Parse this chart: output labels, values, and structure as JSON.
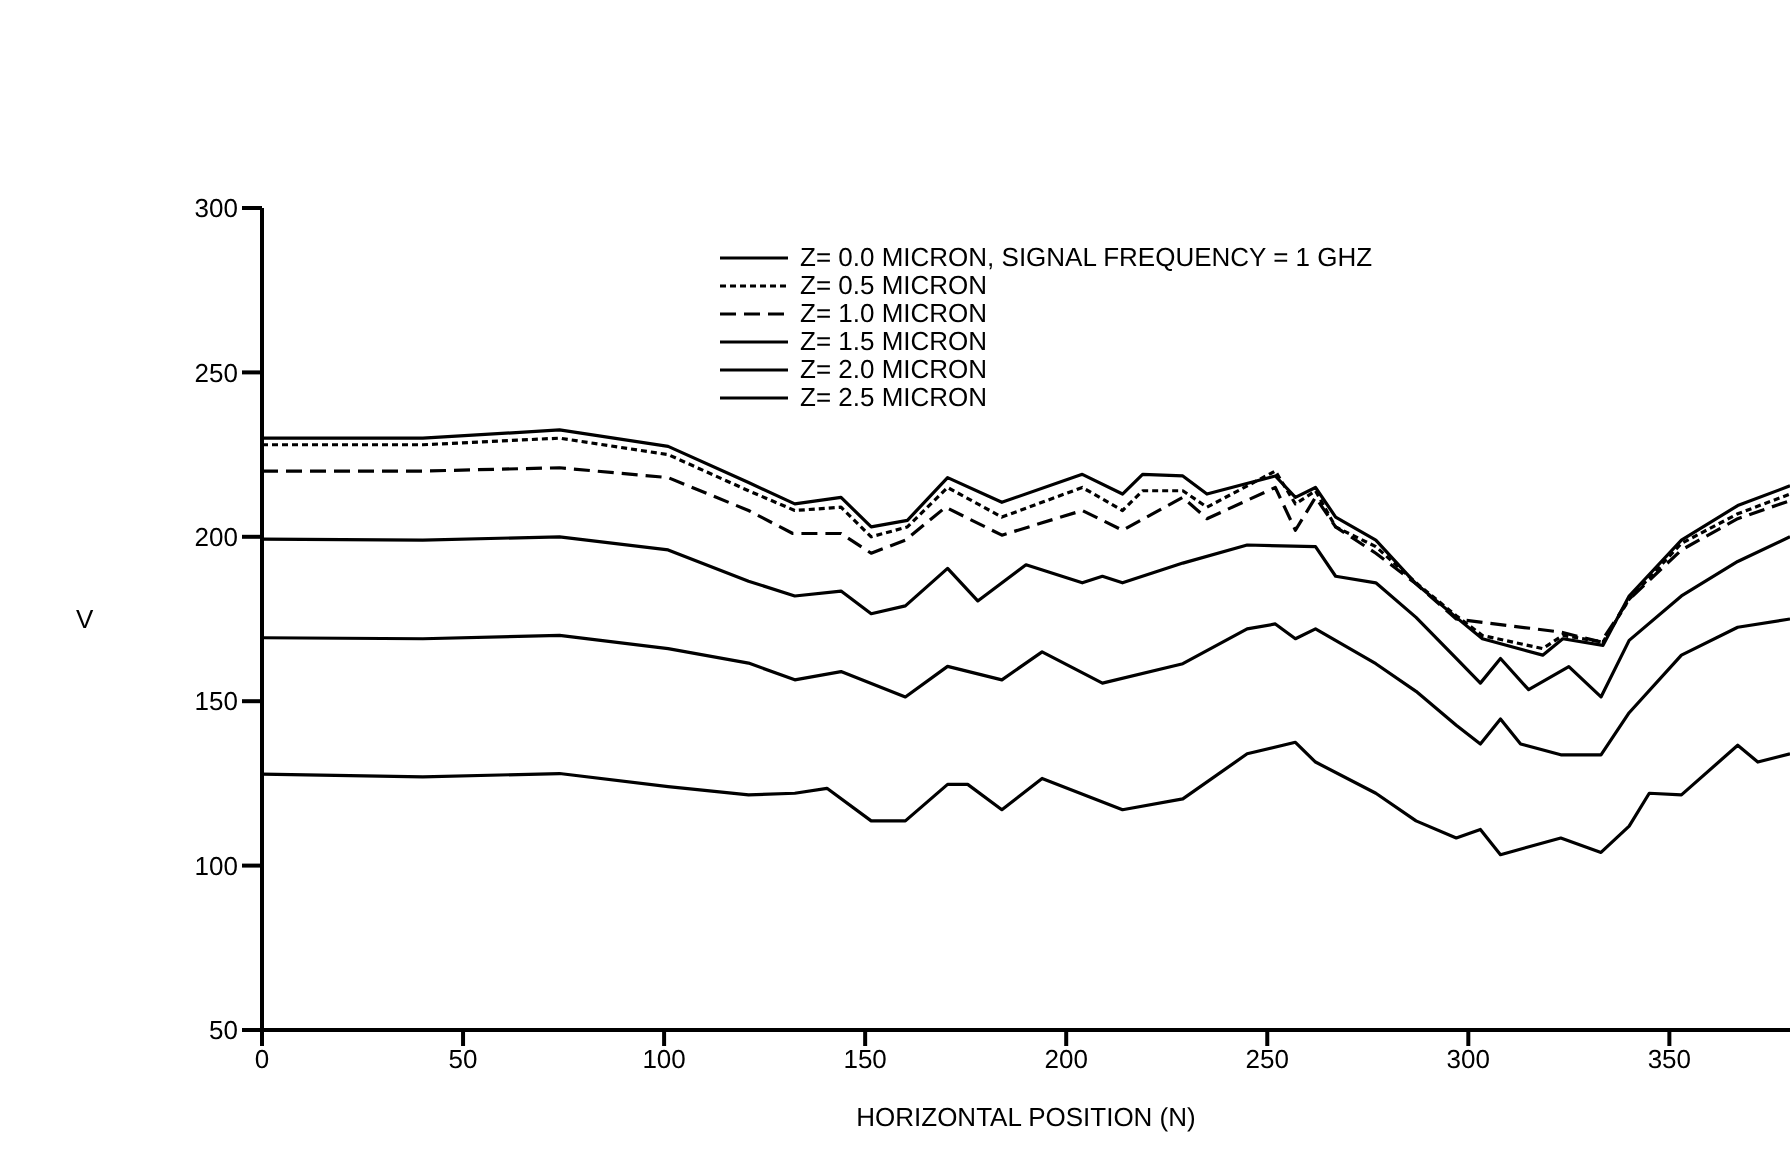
{
  "chart_data": {
    "type": "line",
    "xlabel": "HORIZONTAL POSITION (N)",
    "ylabel": "V",
    "xlim": [
      0,
      380
    ],
    "xticks": [
      0,
      50,
      100,
      150,
      200,
      250,
      300,
      350
    ],
    "ylim": [
      50,
      300
    ],
    "yticks": [
      50,
      100,
      150,
      200,
      250,
      300
    ],
    "legend": "top right",
    "marker": "none",
    "series": [
      {
        "name": "Z= 0.0 MICRON, SIGNAL FREQUENCY = 1 GHZ",
        "color": "#000000",
        "line_style": "solid",
        "x": [
          0,
          40,
          74,
          101,
          121,
          132.5,
          144,
          151.5,
          160.5,
          170.5,
          184,
          204,
          214,
          219,
          229,
          235,
          252,
          257,
          262,
          267,
          277,
          287,
          297,
          303.5,
          318.5,
          323.5,
          333.5,
          340,
          353,
          367,
          380
        ],
        "values": [
          230,
          230,
          232.5,
          227.5,
          216.5,
          210,
          212,
          203,
          205,
          218,
          210.5,
          219,
          213,
          219,
          218.5,
          213,
          218.5,
          212,
          215,
          206,
          199,
          185.7,
          175.5,
          169,
          164,
          169,
          167,
          182,
          199,
          209.5,
          215.5
        ]
      },
      {
        "name": "Z= 0.5 MICRON",
        "color": "#000000",
        "line_style": "dotted",
        "x": [
          0,
          40,
          74,
          101,
          121,
          132.5,
          144,
          151.5,
          160.5,
          170.5,
          184,
          204,
          214,
          219,
          229,
          235,
          252,
          257,
          262,
          267,
          277,
          287,
          297,
          303.5,
          318.5,
          323.5,
          333.5,
          340,
          353,
          367,
          380
        ],
        "values": [
          228,
          228,
          230,
          225,
          214,
          208,
          209,
          200,
          203,
          215,
          206,
          215,
          208,
          214,
          214,
          209,
          220,
          210,
          214,
          203,
          197,
          186,
          176,
          170,
          166,
          170,
          168,
          181,
          198,
          207,
          213
        ]
      },
      {
        "name": "Z= 1.0 MICRON",
        "color": "#000000",
        "line_style": "dashed",
        "x": [
          0,
          40,
          74,
          101,
          121,
          132,
          144,
          151.5,
          160,
          170,
          184,
          204,
          214,
          229,
          235,
          252,
          257,
          262,
          267,
          277,
          287,
          297,
          310,
          323,
          333,
          340,
          353,
          367,
          380
        ],
        "values": [
          220,
          220,
          221,
          218,
          208,
          201,
          201,
          195,
          199,
          209,
          200.5,
          208,
          202,
          212,
          205.5,
          215,
          202,
          212,
          203,
          195,
          185.7,
          175,
          173,
          171,
          168,
          181,
          196,
          205.5,
          211
        ]
      },
      {
        "name": "Z= 1.5 MICRON",
        "color": "#000000",
        "line_style": "solid",
        "x": [
          0,
          40,
          74,
          101,
          121,
          132.5,
          144,
          151.5,
          160,
          170.5,
          178,
          190,
          204,
          209,
          214,
          229,
          245,
          262,
          267,
          277,
          287,
          297,
          303,
          308,
          315,
          325,
          333,
          340,
          353,
          367,
          380
        ],
        "values": [
          199.3,
          199,
          200,
          196,
          186.5,
          182,
          183.5,
          176.6,
          179,
          190.4,
          180.5,
          191.5,
          186,
          188,
          186,
          192,
          197.5,
          197,
          188,
          186,
          175.5,
          163,
          155.5,
          163,
          153.5,
          160.5,
          151.3,
          168.5,
          182,
          192.5,
          200
        ]
      },
      {
        "name": "Z= 2.0 MICRON",
        "color": "#000000",
        "line_style": "solid",
        "x": [
          0,
          40,
          74,
          101,
          121,
          132.5,
          144,
          160,
          170.5,
          184,
          194,
          209,
          229,
          245,
          252,
          257,
          262,
          277,
          287,
          297,
          303,
          308,
          313,
          323,
          333,
          340,
          353,
          367,
          380
        ],
        "values": [
          169.3,
          169,
          170,
          166,
          161.6,
          156.5,
          159,
          151.3,
          160.6,
          156.5,
          165,
          155.5,
          161.4,
          172,
          173.5,
          169,
          172,
          161.4,
          153,
          142.7,
          137,
          144.6,
          137,
          133.7,
          133.7,
          146.5,
          164,
          172.5,
          175
        ]
      },
      {
        "name": "Z= 2.5 MICRON",
        "color": "#000000",
        "line_style": "solid",
        "x": [
          0,
          40,
          74,
          101,
          121,
          132.5,
          140.5,
          151.5,
          160,
          170.5,
          175.5,
          184,
          194,
          214,
          229,
          245,
          257,
          262,
          277,
          287,
          297,
          303,
          308,
          323,
          333,
          340,
          345,
          353,
          367,
          372,
          380
        ],
        "values": [
          127.8,
          127,
          128,
          124,
          121.5,
          122,
          123.5,
          113.6,
          113.6,
          124.7,
          124.7,
          117,
          126.5,
          117,
          120.3,
          134,
          137.5,
          131.5,
          122,
          113.6,
          108.4,
          111,
          103.3,
          108.4,
          104,
          112,
          122,
          121.5,
          136.6,
          131.5,
          134
        ]
      }
    ]
  }
}
